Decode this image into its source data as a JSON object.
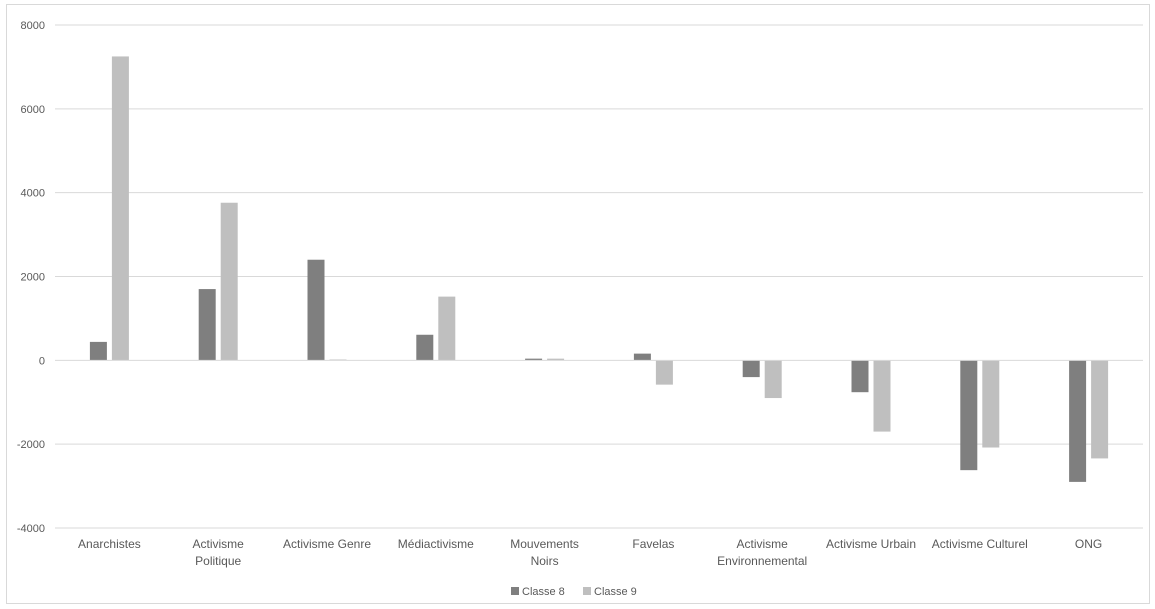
{
  "chart_data": {
    "type": "bar",
    "categories": [
      "Anarchistes",
      "Activisme Politique",
      "Activisme Genre",
      "Médiactivisme",
      "Mouvements Noirs",
      "Favelas",
      "Activisme Environnemental",
      "Activisme Urbain",
      "Activisme Culturel",
      "ONG"
    ],
    "category_lines": [
      [
        "Anarchistes"
      ],
      [
        "Activisme",
        "Politique"
      ],
      [
        "Activisme Genre"
      ],
      [
        "Médiactivisme"
      ],
      [
        "Mouvements",
        "Noirs"
      ],
      [
        "Favelas"
      ],
      [
        "Activisme",
        "Environnemental"
      ],
      [
        "Activisme Urbain"
      ],
      [
        "Activisme Culturel"
      ],
      [
        "ONG"
      ]
    ],
    "series": [
      {
        "name": "Classe 8",
        "color": "#7f7f7f",
        "values": [
          440,
          1700,
          2400,
          610,
          40,
          160,
          -400,
          -760,
          -2620,
          -2900
        ]
      },
      {
        "name": "Classe 9",
        "color": "#bfbfbf",
        "values": [
          7250,
          3760,
          20,
          1520,
          40,
          -580,
          -900,
          -1700,
          -2080,
          -2340
        ]
      }
    ],
    "ylim": [
      -4000,
      8000
    ],
    "yticks": [
      8000,
      6000,
      4000,
      2000,
      0,
      -2000,
      -4000
    ],
    "grid": true,
    "legend_position": "bottom-center",
    "title": "",
    "xlabel": "",
    "ylabel": ""
  }
}
